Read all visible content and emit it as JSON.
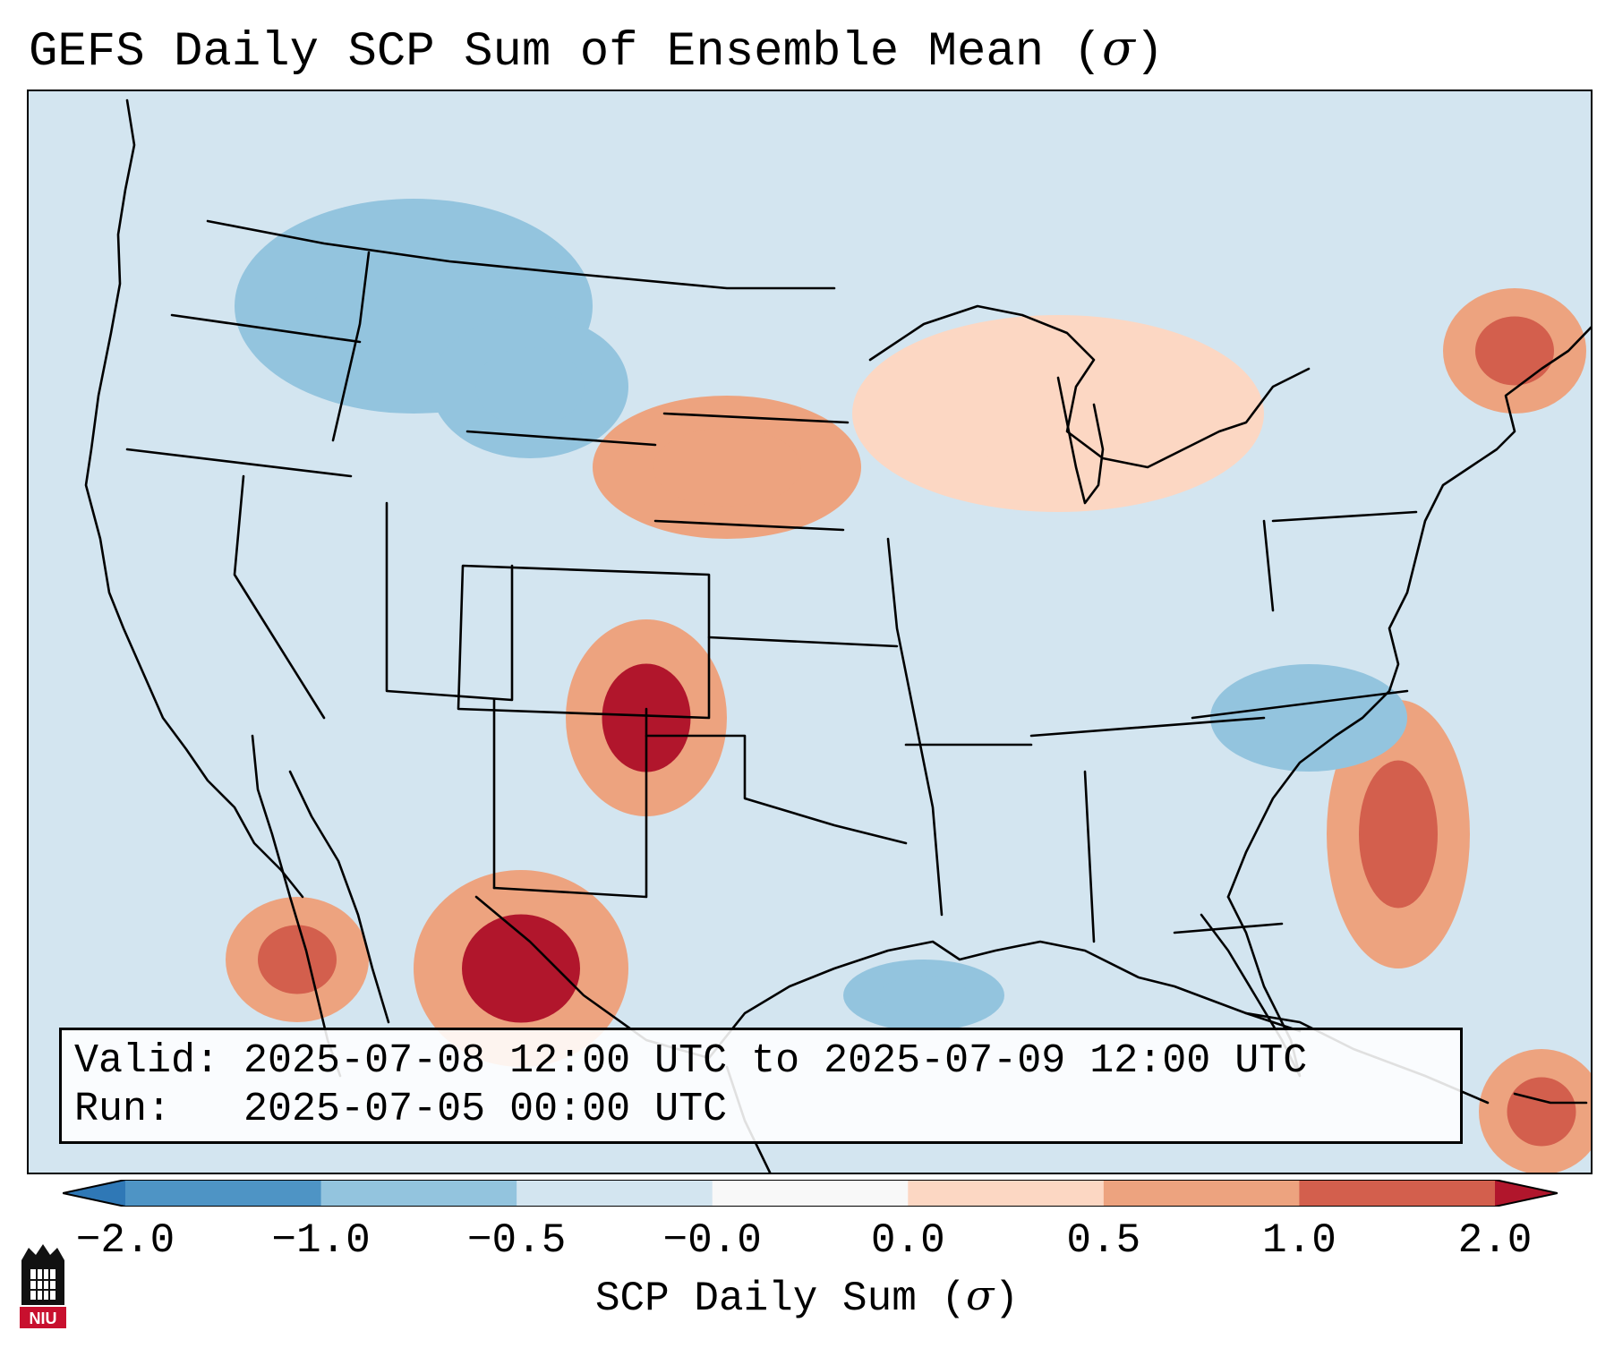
{
  "title": {
    "text": "GEFS Daily SCP Sum of Ensemble Mean (",
    "symbol": "σ",
    "close": ")"
  },
  "info": {
    "valid_label": "Valid:",
    "valid_value": "2025-07-08 12:00 UTC to 2025-07-09 12:00 UTC",
    "run_label": "Run:",
    "run_value": "2025-07-05 00:00 UTC"
  },
  "colorbar": {
    "label_text": "SCP Daily Sum (",
    "label_symbol": "σ",
    "label_close": ")",
    "tick_labels": [
      "−2.0",
      "−1.0",
      "−0.5",
      "−0.0",
      "0.0",
      "0.5",
      "1.0",
      "2.0"
    ],
    "bins": [
      "#2f78b6",
      "#4e94c5",
      "#93c4de",
      "#d3e5f0",
      "#f8f8f8",
      "#fcd7c3",
      "#eda37f",
      "#d35f4d",
      "#b1162c"
    ],
    "extend": "both"
  },
  "map": {
    "region": "Contiguous United States",
    "colors": {
      "background": "#d3e5f0",
      "neg_light": "#d3e5f0",
      "neg_mid": "#93c4de",
      "neg_dark": "#4e94c5",
      "pos_light": "#fcd7c3",
      "pos_mid": "#eda37f",
      "pos_high": "#d35f4d",
      "pos_max": "#b1162c"
    },
    "anomalies": [
      {
        "area": "Northern Rockies / Montana",
        "category": "negative",
        "sigma": -0.6
      },
      {
        "area": "Wyoming",
        "category": "negative",
        "sigma": -0.6
      },
      {
        "area": "South Dakota / Nebraska",
        "category": "positive",
        "sigma": 0.8
      },
      {
        "area": "Upper Midwest / Great Lakes",
        "category": "positive",
        "sigma": 0.3
      },
      {
        "area": "New England",
        "category": "positive",
        "sigma": 1.2
      },
      {
        "area": "Eastern New Mexico / Oklahoma Panhandle",
        "category": "positive",
        "sigma": 1.5
      },
      {
        "area": "Northern Mexico",
        "category": "positive",
        "sigma": 1.6
      },
      {
        "area": "Gulf of California",
        "category": "positive",
        "sigma": 1.2
      },
      {
        "area": "Southeast US coast / Atlantic",
        "category": "positive",
        "sigma": 1.4
      },
      {
        "area": "Carolinas / Virginia",
        "category": "negative",
        "sigma": -0.6
      },
      {
        "area": "Gulf of Mexico (Texas/Louisiana coast)",
        "category": "negative",
        "sigma": -0.6
      },
      {
        "area": "Yucatan / Caribbean",
        "category": "positive",
        "sigma": 1.3
      }
    ]
  },
  "logo": {
    "text": "NIU"
  }
}
